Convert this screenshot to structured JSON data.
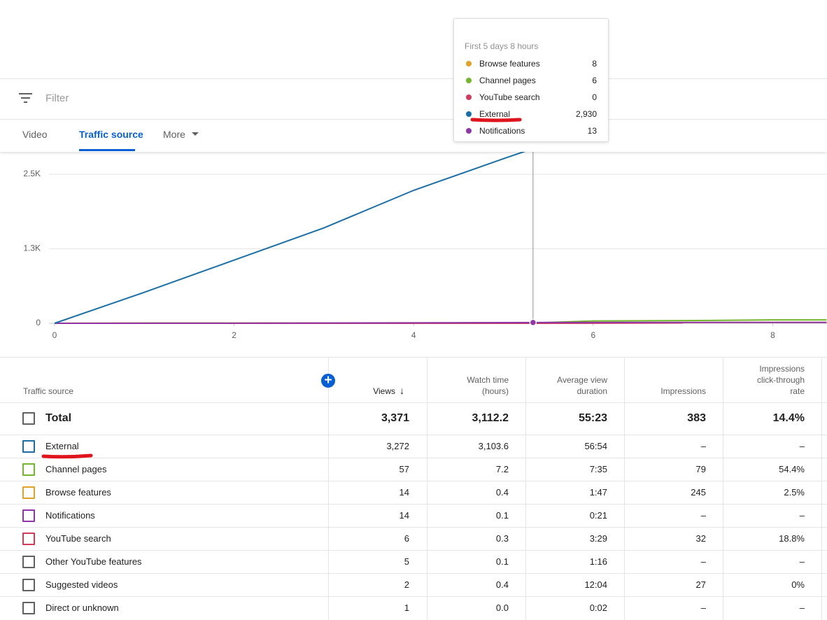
{
  "filter": {
    "placeholder": "Filter"
  },
  "tabs": [
    "Video",
    "Traffic source",
    "More"
  ],
  "chart_data": {
    "type": "line",
    "x": [
      0,
      1,
      2,
      3,
      4,
      5,
      5.33,
      6,
      7,
      8,
      8.6
    ],
    "xlim": [
      0,
      8.6
    ],
    "xticks": [
      0,
      2,
      4,
      6,
      8
    ],
    "ylim": [
      0,
      3000
    ],
    "yticks": [
      0,
      {
        "value": 1250,
        "label": "1.3K"
      },
      {
        "value": 2500,
        "label": "2.5K"
      }
    ],
    "grid": true,
    "series": [
      {
        "name": "Browse features",
        "color": "#e2a226",
        "values": [
          2,
          4,
          5,
          6,
          7,
          8,
          8,
          10,
          12,
          14,
          14
        ]
      },
      {
        "name": "Channel pages",
        "color": "#72b62b",
        "values": [
          0,
          1,
          1,
          2,
          2,
          5,
          6,
          40,
          45,
          57,
          57
        ]
      },
      {
        "name": "YouTube search",
        "color": "#d03a5b",
        "values": [
          0,
          0,
          0,
          0,
          0,
          0,
          0,
          2,
          6,
          null,
          null
        ]
      },
      {
        "name": "Notifications",
        "color": "#8e35a8",
        "values": [
          0,
          1,
          2,
          4,
          8,
          12,
          13,
          14,
          14,
          14,
          14
        ]
      },
      {
        "name": "External",
        "color": "#1a6fa8",
        "values": [
          0,
          520,
          1060,
          1600,
          2230,
          2760,
          2930,
          null,
          null,
          null,
          null
        ]
      }
    ]
  },
  "tooltip": {
    "title": "First 5 days 8 hours",
    "rows": [
      {
        "name": "Browse features",
        "value": "8",
        "color": "#e2a226"
      },
      {
        "name": "Channel pages",
        "value": "6",
        "color": "#72b62b"
      },
      {
        "name": "YouTube search",
        "value": "0",
        "color": "#d03a5b"
      },
      {
        "name": "External",
        "value": "2,930",
        "color": "#1a6fa8"
      },
      {
        "name": "Notifications",
        "value": "13",
        "color": "#8e35a8"
      }
    ]
  },
  "table": {
    "headers": [
      "Traffic source",
      "Views",
      "Watch time (hours)",
      "Average view duration",
      "Impressions",
      "Impressions click-through rate"
    ],
    "rows": [
      {
        "cells": [
          "Total",
          "3,371",
          "3,112.2",
          "55:23",
          "383",
          "14.4%"
        ],
        "color": "#606060"
      },
      {
        "cells": [
          "External",
          "3,272",
          "3,103.6",
          "56:54",
          "–",
          "–"
        ],
        "color": "#1a6fa8"
      },
      {
        "cells": [
          "Channel pages",
          "57",
          "7.2",
          "7:35",
          "79",
          "54.4%"
        ],
        "color": "#72b62b"
      },
      {
        "cells": [
          "Browse features",
          "14",
          "0.4",
          "1:47",
          "245",
          "2.5%"
        ],
        "color": "#e2a226"
      },
      {
        "cells": [
          "Notifications",
          "14",
          "0.1",
          "0:21",
          "–",
          "–"
        ],
        "color": "#8e35a8"
      },
      {
        "cells": [
          "YouTube search",
          "6",
          "0.3",
          "3:29",
          "32",
          "18.8%"
        ],
        "color": "#d03a5b"
      },
      {
        "cells": [
          "Other YouTube features",
          "5",
          "0.1",
          "1:16",
          "–",
          "–"
        ],
        "color": "#606060"
      },
      {
        "cells": [
          "Suggested videos",
          "2",
          "0.4",
          "12:04",
          "27",
          "0%"
        ],
        "color": "#606060"
      },
      {
        "cells": [
          "Direct or unknown",
          "1",
          "0.0",
          "0:02",
          "–",
          "–"
        ],
        "color": "#606060"
      }
    ]
  }
}
